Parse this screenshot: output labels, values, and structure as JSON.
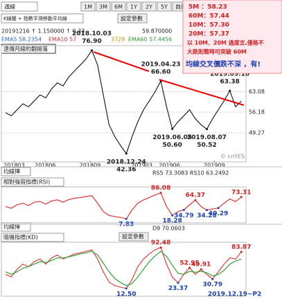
{
  "toolbar": {
    "period": "週線",
    "ranges": [
      "1M",
      "3M",
      "6M",
      "1Y",
      "2Y",
      "5Y"
    ],
    "custom": "自訂區間",
    "indicator": "K線圖 + 指數平滑移動平均線",
    "settings": "設定參數"
  },
  "info": [
    "20191216  ↑ 1.150000  ↑ 0.33",
    "59.870000"
  ],
  "ema": [
    "EMA5 58.2354",
    "EMA10 57",
    "3729",
    "EMA60 57.4456"
  ],
  "tag": "遠傳月線約翻揚落",
  "watermark": "© cnYES",
  "note_box": [
    "5M ：58.23",
    "60M：57.44",
    "10M：57.30",
    "20M：57.37",
    "以 10M．20M 過度言,僅格不",
    "大跌則整時可突破 60M",
    "均線交叉價跌不深 ，有!"
  ],
  "chart_data": [
    {
      "type": "line",
      "ylim": [
        40,
        78
      ],
      "yticks": [
        63.08,
        56.18,
        49.27
      ],
      "grid": true,
      "xticks": [
        {
          "value": 1.5,
          "label": "201803"
        },
        {
          "value": 6.9,
          "label": "201806"
        },
        {
          "value": 14.7,
          "label": "201809"
        },
        {
          "value": 23.7,
          "label": "201903"
        },
        {
          "value": 28.5,
          "label": "201906"
        },
        {
          "value": 36.3,
          "label": "201909"
        }
      ],
      "series": [
        {
          "color": "#222222",
          "values": [
            56,
            55,
            57,
            59,
            58,
            60,
            62,
            61,
            64,
            66,
            65,
            68,
            70,
            72,
            74,
            76.9,
            72,
            62,
            52,
            48,
            45,
            42.36,
            48,
            53,
            57,
            60,
            63,
            66.6,
            58,
            50.6,
            53,
            55,
            57,
            54,
            52,
            50.52,
            54,
            57,
            60,
            63.38,
            58,
            59.87
          ],
          "value_labels": [
            null,
            null,
            null,
            null,
            null,
            null,
            null,
            null,
            null,
            null,
            null,
            null,
            null,
            null,
            null,
            "76.90",
            null,
            null,
            null,
            null,
            null,
            "42.36",
            null,
            null,
            null,
            null,
            null,
            "66.60",
            null,
            "50.60",
            null,
            null,
            null,
            null,
            null,
            "50.52",
            null,
            null,
            null,
            "63.38",
            null,
            null
          ],
          "value_dates": [
            null,
            null,
            null,
            null,
            null,
            null,
            null,
            null,
            null,
            null,
            null,
            null,
            null,
            null,
            null,
            "2018.10.03",
            null,
            null,
            null,
            null,
            null,
            "2018.12.24",
            null,
            null,
            null,
            null,
            null,
            "2019.04.23",
            null,
            "2019.06.05",
            null,
            null,
            null,
            null,
            null,
            "2019.08.07",
            null,
            null,
            null,
            "2019.09.16",
            null,
            null
          ]
        }
      ]
    },
    {
      "type": "line",
      "period": "均線擇",
      "indicator": "相對強弱指標(RSI)",
      "readout": "RS5 73.3083  RS10 63.2492",
      "ylim": [
        0,
        100
      ],
      "series": [
        {
          "color": "#dd3333",
          "values": [
            45,
            40,
            50,
            55,
            48,
            58,
            60,
            52,
            62,
            65,
            58,
            66,
            70,
            72,
            75,
            78,
            55,
            30,
            18,
            15,
            12,
            7.83,
            35,
            55,
            65,
            72,
            80,
            86.08,
            45,
            18.28,
            30,
            34.79,
            50,
            64.37,
            45,
            34.28,
            38,
            40.29,
            55,
            68,
            60,
            73.31
          ],
          "value_labels": [
            null,
            null,
            null,
            null,
            null,
            null,
            null,
            null,
            null,
            null,
            null,
            null,
            null,
            null,
            null,
            null,
            null,
            null,
            null,
            null,
            null,
            "7.83",
            null,
            null,
            null,
            null,
            null,
            "86.08",
            null,
            "18.28",
            null,
            "34.79",
            null,
            "64.37",
            null,
            "34.28",
            null,
            "40.29",
            null,
            null,
            null,
            "73.31"
          ]
        }
      ]
    },
    {
      "type": "line",
      "period": "均線擇",
      "indicator": "隨機指標(KD)",
      "settings": "設定參數",
      "readout": "D9 70.0603",
      "note": "2019.12.19~P2",
      "ylim": [
        0,
        100
      ],
      "series": [
        {
          "color": "#e04040",
          "values": [
            40,
            35,
            50,
            60,
            55,
            65,
            70,
            60,
            72,
            78,
            70,
            75,
            80,
            82,
            85,
            88,
            70,
            45,
            25,
            18,
            15,
            12.5,
            30,
            55,
            70,
            80,
            88,
            92.48,
            60,
            35,
            23.37,
            40,
            52.95,
            40,
            49.91,
            40,
            30.79,
            45,
            60,
            72,
            70,
            83.87
          ],
          "value_labels": [
            null,
            null,
            null,
            null,
            null,
            null,
            null,
            null,
            null,
            null,
            null,
            null,
            null,
            null,
            null,
            null,
            null,
            null,
            null,
            null,
            null,
            "12.50",
            null,
            null,
            null,
            null,
            null,
            "92.48",
            null,
            null,
            "23.37",
            null,
            "52.95",
            null,
            "49.91",
            null,
            "30.79",
            null,
            null,
            null,
            null,
            "83.87"
          ]
        },
        {
          "color": "#33a033",
          "values": [
            45,
            40,
            45,
            52,
            55,
            60,
            65,
            63,
            67,
            72,
            72,
            74,
            77,
            80,
            82,
            85,
            78,
            62,
            45,
            32,
            24,
            18,
            22,
            35,
            50,
            65,
            76,
            85,
            75,
            58,
            42,
            40,
            46,
            44,
            46,
            43,
            37,
            40,
            48,
            60,
            66,
            70.06
          ]
        }
      ]
    }
  ]
}
